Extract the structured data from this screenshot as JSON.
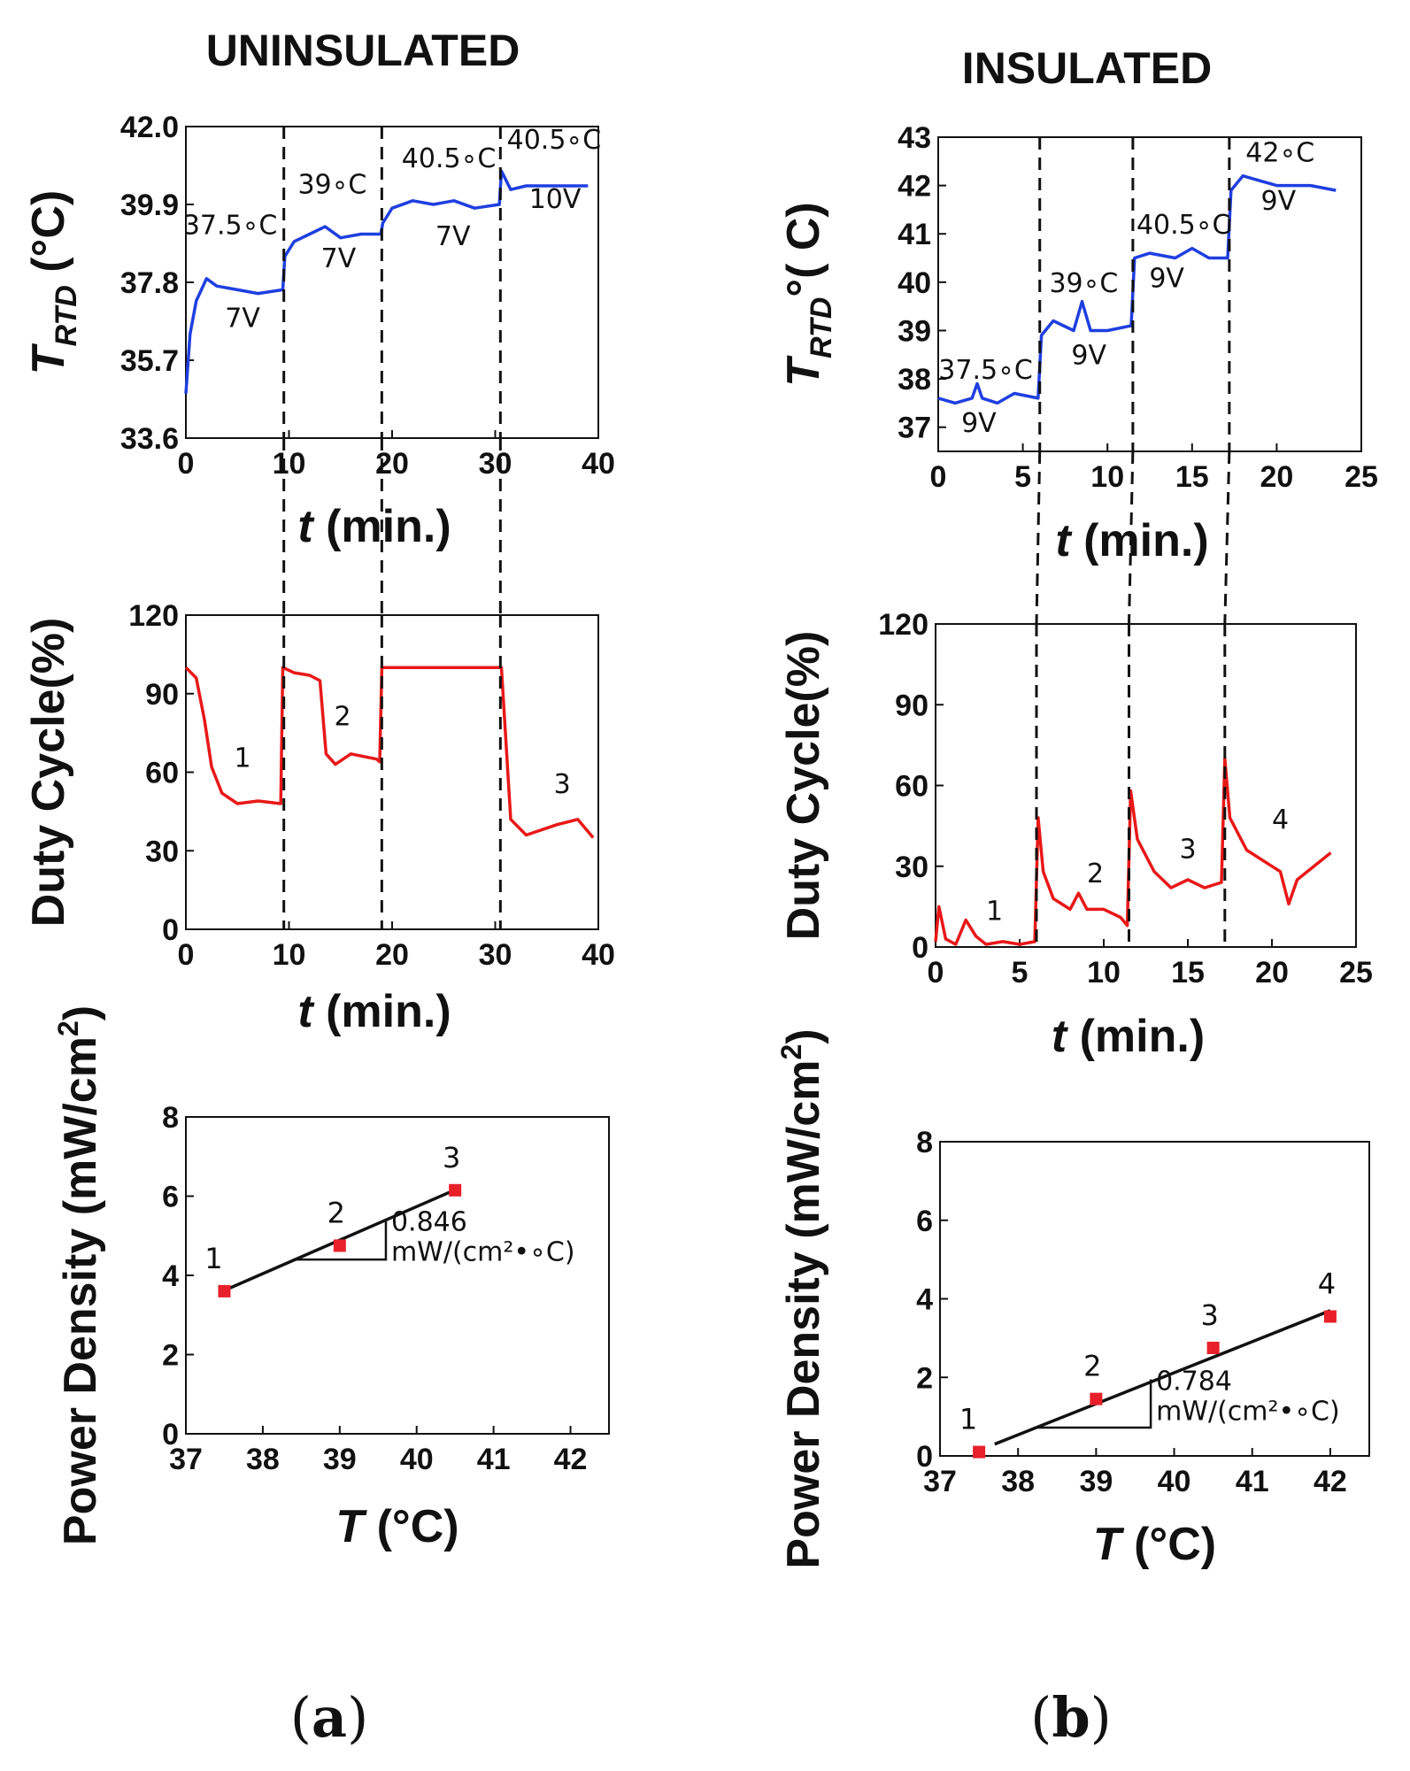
{
  "figure": {
    "title_left": "UNINSULATED",
    "title_right": "INSULATED",
    "panel_a_paren_open": "(",
    "panel_a_letter": "a",
    "panel_a_paren_close": ")",
    "panel_b_paren_open": "(",
    "panel_b_letter": "b",
    "panel_b_paren_close": ")"
  },
  "colors": {
    "temp": "#1f3fe0",
    "duty": "#e81818",
    "marker": "#e8202a",
    "line": "#111111"
  },
  "chart_data": [
    {
      "id": "a_temp",
      "type": "line",
      "column": "uninsulated",
      "title": "UNINSULATED",
      "ylabel": "T_RTD (°C)",
      "ylabel_main": "T",
      "ylabel_sub": "RTD",
      "ylabel_unit": " (°C)",
      "xlabel": "t (min.)",
      "xlabel_var": "t",
      "xlabel_unit": " (min.)",
      "xlim": [
        0,
        40
      ],
      "ylim": [
        33.6,
        42.0
      ],
      "xticks": [
        "0",
        "10",
        "20",
        "30",
        "40"
      ],
      "yticks": [
        "33.6",
        "35.7",
        "37.8",
        "39.9",
        "42.0"
      ],
      "yticks_values": [
        33.6,
        35.7,
        37.8,
        39.9,
        42.0
      ],
      "vlines": [
        9.5,
        19,
        30.5
      ],
      "series": [
        {
          "name": "T_RTD",
          "x": [
            0,
            0.4,
            1,
            2,
            3,
            5,
            7,
            9.4,
            9.6,
            10.5,
            12,
            13.5,
            15,
            17,
            18.9,
            19.1,
            20,
            22,
            24,
            26,
            28,
            30.4,
            30.6,
            31.5,
            33,
            36,
            39
          ],
          "y": [
            34.8,
            36.4,
            37.3,
            37.9,
            37.7,
            37.6,
            37.5,
            37.6,
            38.5,
            38.9,
            39.1,
            39.3,
            39.0,
            39.1,
            39.1,
            39.4,
            39.8,
            40.0,
            39.9,
            40.0,
            39.8,
            39.9,
            40.8,
            40.3,
            40.4,
            40.4,
            40.4
          ]
        }
      ],
      "annotations": [
        {
          "text": "37.5∘C",
          "x": 4.3,
          "y": 39.1
        },
        {
          "text": "7V",
          "x": 5.5,
          "y": 36.6
        },
        {
          "text": "39∘C",
          "x": 14.2,
          "y": 40.2
        },
        {
          "text": "7V",
          "x": 14.8,
          "y": 38.2
        },
        {
          "text": "40.5∘C",
          "x": 25.5,
          "y": 40.9
        },
        {
          "text": "7V",
          "x": 25.9,
          "y": 38.8
        },
        {
          "text": "40.5∘C",
          "x": 35.7,
          "y": 41.4
        },
        {
          "text": "10V",
          "x": 35.8,
          "y": 39.8
        }
      ]
    },
    {
      "id": "a_duty",
      "type": "line",
      "column": "uninsulated",
      "ylabel": "Duty Cycle(%)",
      "xlabel": "t (min.)",
      "xlabel_var": "t",
      "xlabel_unit": " (min.)",
      "xlim": [
        0,
        40
      ],
      "ylim": [
        0,
        120
      ],
      "xticks": [
        "0",
        "10",
        "20",
        "30",
        "40"
      ],
      "yticks": [
        "0",
        "30",
        "60",
        "90",
        "120"
      ],
      "yticks_values": [
        0,
        30,
        60,
        90,
        120
      ],
      "vlines": [
        9.5,
        19,
        30.5
      ],
      "series": [
        {
          "name": "Duty Cycle",
          "x": [
            0,
            1,
            1.8,
            2.5,
            3.5,
            5,
            7,
            9.2,
            9.4,
            10.5,
            12,
            13,
            13.6,
            14.5,
            16,
            18.5,
            18.8,
            19,
            22,
            26,
            30.6,
            31.5,
            33,
            36,
            38,
            39.5
          ],
          "y": [
            100,
            96,
            80,
            62,
            52,
            48,
            49,
            48,
            100,
            98,
            97,
            95,
            67,
            63,
            67,
            65,
            64,
            100,
            100,
            100,
            100,
            42,
            36,
            40,
            42,
            35
          ]
        }
      ],
      "annotations": [
        {
          "text": "1",
          "x": 5.5,
          "y": 62
        },
        {
          "text": "2",
          "x": 15.2,
          "y": 78
        },
        {
          "text": "3",
          "x": 36.5,
          "y": 52
        }
      ]
    },
    {
      "id": "a_power",
      "type": "scatter",
      "column": "uninsulated",
      "ylabel": "Power Density (mW/cm²)",
      "ylabel_main": "Power Density (mW/cm",
      "ylabel_sup": "2",
      "ylabel_close": ")",
      "xlabel": "T (°C)",
      "xlabel_var": "T",
      "xlabel_unit": " (°C)",
      "xlim": [
        37,
        42.5
      ],
      "ylim": [
        0,
        8
      ],
      "xticks": [
        "37",
        "38",
        "39",
        "40",
        "41",
        "42"
      ],
      "xticks_values": [
        37,
        38,
        39,
        40,
        41,
        42
      ],
      "yticks": [
        "0",
        "2",
        "4",
        "6",
        "8"
      ],
      "yticks_values": [
        0,
        2,
        4,
        6,
        8
      ],
      "points": [
        {
          "label": "1",
          "x": 37.5,
          "y": 3.6
        },
        {
          "label": "2",
          "x": 39.0,
          "y": 4.75
        },
        {
          "label": "3",
          "x": 40.5,
          "y": 6.15
        }
      ],
      "fit": {
        "x": [
          37.5,
          40.5
        ],
        "y": [
          3.62,
          6.16
        ]
      },
      "slope_triangle": {
        "x1": 38.4,
        "x2": 39.6,
        "y1": 4.4,
        "y2": 5.4
      },
      "slope_value": "0.846",
      "slope_unit": "mW/(cm²•∘C)"
    },
    {
      "id": "b_temp",
      "type": "line",
      "column": "insulated",
      "title": "INSULATED",
      "ylabel": "T_RTD °( C)",
      "ylabel_main": "T",
      "ylabel_sub": "RTD",
      "ylabel_unit": "°( C)",
      "xlabel": "t (min.)",
      "xlabel_var": "t",
      "xlabel_unit": " (min.)",
      "xlim": [
        0,
        25
      ],
      "ylim": [
        36.5,
        43
      ],
      "xticks": [
        "0",
        "5",
        "10",
        "15",
        "20",
        "25"
      ],
      "yticks": [
        "37",
        "38",
        "39",
        "40",
        "41",
        "42",
        "43"
      ],
      "yticks_values": [
        37,
        38,
        39,
        40,
        41,
        42,
        43
      ],
      "vlines": [
        6,
        11.5,
        17.2
      ],
      "series": [
        {
          "name": "T_RTD",
          "x": [
            0,
            1,
            2,
            2.3,
            2.6,
            3.5,
            4.5,
            5.9,
            6.1,
            6.8,
            8,
            8.5,
            9,
            10,
            11.4,
            11.6,
            12.5,
            14,
            15,
            16,
            17.1,
            17.3,
            18,
            19,
            20,
            21,
            22,
            23.5
          ],
          "y": [
            37.6,
            37.5,
            37.6,
            37.9,
            37.6,
            37.5,
            37.7,
            37.6,
            38.9,
            39.2,
            39.0,
            39.6,
            39.0,
            39.0,
            39.1,
            40.5,
            40.6,
            40.5,
            40.7,
            40.5,
            40.5,
            41.9,
            42.2,
            42.1,
            42.0,
            42.0,
            42.0,
            41.9
          ]
        }
      ],
      "annotations": [
        {
          "text": "37.5∘C",
          "x": 2.8,
          "y": 38.0
        },
        {
          "text": "9V",
          "x": 2.4,
          "y": 36.9
        },
        {
          "text": "39∘C",
          "x": 8.6,
          "y": 39.8
        },
        {
          "text": "9V",
          "x": 8.9,
          "y": 38.3
        },
        {
          "text": "40.5∘C",
          "x": 14.5,
          "y": 41.0
        },
        {
          "text": "9V",
          "x": 13.5,
          "y": 39.9
        },
        {
          "text": "42∘C",
          "x": 20.2,
          "y": 42.5
        },
        {
          "text": "9V",
          "x": 20.1,
          "y": 41.5
        }
      ]
    },
    {
      "id": "b_duty",
      "type": "line",
      "column": "insulated",
      "ylabel": "Duty Cycle(%)",
      "xlabel": "t (min.)",
      "xlabel_var": "t",
      "xlabel_unit": " (min.)",
      "xlim": [
        0,
        25
      ],
      "ylim": [
        0,
        120
      ],
      "xticks": [
        "0",
        "5",
        "10",
        "15",
        "20",
        "25"
      ],
      "yticks": [
        "0",
        "30",
        "60",
        "90",
        "120"
      ],
      "yticks_values": [
        0,
        30,
        60,
        90,
        120
      ],
      "vlines": [
        6,
        11.5,
        17.2
      ],
      "series": [
        {
          "name": "Duty Cycle",
          "x": [
            0,
            0.2,
            0.6,
            1.2,
            1.8,
            2.4,
            3,
            4,
            5,
            5.9,
            6.1,
            6.4,
            7,
            8,
            8.5,
            9,
            10,
            11,
            11.4,
            11.6,
            12,
            13,
            14,
            15,
            16,
            17,
            17.2,
            17.5,
            18.5,
            19.5,
            20.5,
            21,
            21.5,
            22.5,
            23.5
          ],
          "y": [
            2,
            15,
            3,
            1,
            10,
            4,
            1,
            2,
            1,
            2,
            48,
            28,
            18,
            14,
            20,
            14,
            14,
            11,
            8,
            58,
            40,
            28,
            22,
            25,
            22,
            24,
            70,
            48,
            36,
            32,
            28,
            16,
            25,
            30,
            35
          ]
        }
      ],
      "annotations": [
        {
          "text": "1",
          "x": 3.5,
          "y": 10
        },
        {
          "text": "2",
          "x": 9.5,
          "y": 24
        },
        {
          "text": "3",
          "x": 15,
          "y": 33
        },
        {
          "text": "4",
          "x": 20.5,
          "y": 44
        }
      ]
    },
    {
      "id": "b_power",
      "type": "scatter",
      "column": "insulated",
      "ylabel": "Power Density (mW/cm²)",
      "ylabel_main": "Power Density (mW/cm",
      "ylabel_sup": "2",
      "ylabel_close": ")",
      "xlabel": "T (°C)",
      "xlabel_var": "T",
      "xlabel_unit": " (°C)",
      "xlim": [
        37,
        42.5
      ],
      "ylim": [
        0,
        8
      ],
      "xticks": [
        "37",
        "38",
        "39",
        "40",
        "41",
        "42"
      ],
      "xticks_values": [
        37,
        38,
        39,
        40,
        41,
        42
      ],
      "yticks": [
        "0",
        "2",
        "4",
        "6",
        "8"
      ],
      "yticks_values": [
        0,
        2,
        4,
        6,
        8
      ],
      "points": [
        {
          "label": "1",
          "x": 37.5,
          "y": 0.1
        },
        {
          "label": "2",
          "x": 39.0,
          "y": 1.45
        },
        {
          "label": "3",
          "x": 40.5,
          "y": 2.75
        },
        {
          "label": "4",
          "x": 42.0,
          "y": 3.55
        }
      ],
      "fit": {
        "x": [
          37.7,
          42.0
        ],
        "y": [
          0.3,
          3.7
        ]
      },
      "slope_triangle": {
        "x1": 38.2,
        "x2": 39.7,
        "y1": 0.72,
        "y2": 1.95
      },
      "slope_value": "0.784",
      "slope_unit": "mW/(cm²•∘C)"
    }
  ]
}
